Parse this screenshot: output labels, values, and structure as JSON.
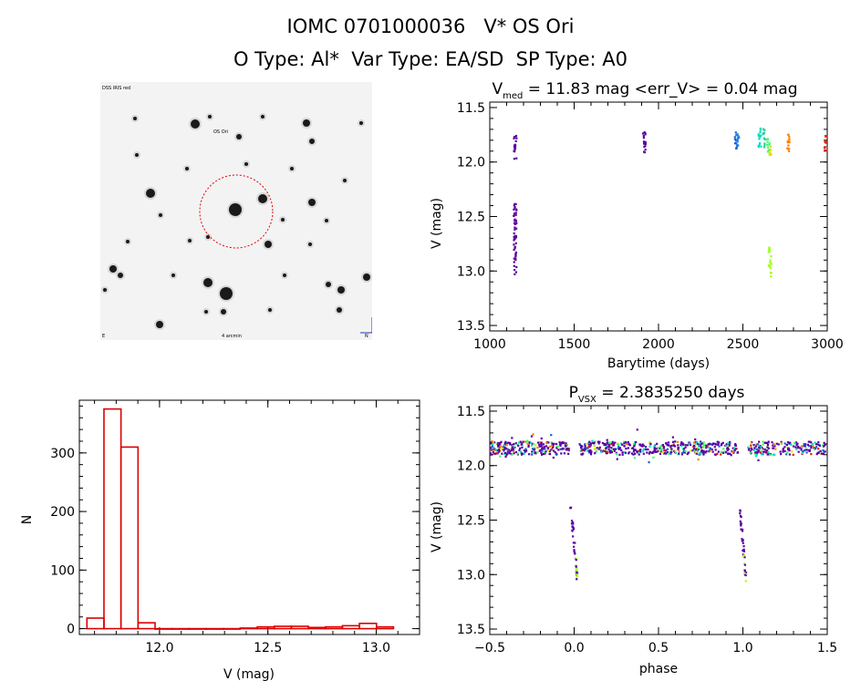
{
  "header": {
    "title_line1": "IOMC 0701000036   V* OS Ori",
    "title_line2": "O Type: Al*  Var Type: EA/SD  SP Type: A0"
  },
  "finder": {
    "label_top_left": "DSS IRIS red",
    "label_target": "OS Ori",
    "label_bottom_center": "4 arcmin",
    "label_bottom_left": "E",
    "label_bottom_right": "N"
  },
  "chart_data": [
    {
      "type": "scatter",
      "id": "light_curve",
      "title_main": "V",
      "title_sub": "med",
      "title_rest": " = 11.83 mag <err_V> = 0.04 mag",
      "xlabel": "Barytime (days)",
      "ylabel": "V (mag)",
      "xlim": [
        1000,
        3000
      ],
      "ylim": [
        13.55,
        11.45
      ],
      "xticks": [
        1000,
        1500,
        2000,
        2500,
        3000
      ],
      "yticks": [
        11.5,
        12.0,
        12.5,
        13.0,
        13.5
      ],
      "ytick_labels": [
        "11.5",
        "12.0",
        "12.5",
        "13.0",
        "13.5"
      ],
      "segments": [
        {
          "x": 1150,
          "y_lo": 11.74,
          "y_hi": 11.98,
          "color": "#5a00a0"
        },
        {
          "x": 1150,
          "y_lo": 12.38,
          "y_hi": 13.06,
          "color": "#5a00a0"
        },
        {
          "x": 1915,
          "y_lo": 11.72,
          "y_hi": 11.93,
          "color": "#5a00a0"
        },
        {
          "x": 2460,
          "y_lo": 11.72,
          "y_hi": 11.88,
          "color": "#1f5fd0"
        },
        {
          "x": 2470,
          "y_lo": 11.74,
          "y_hi": 11.86,
          "color": "#2080e0"
        },
        {
          "x": 2600,
          "y_lo": 11.68,
          "y_hi": 11.88,
          "color": "#00e0c0"
        },
        {
          "x": 2625,
          "y_lo": 11.68,
          "y_hi": 11.87,
          "color": "#30d0a0"
        },
        {
          "x": 2650,
          "y_lo": 11.78,
          "y_hi": 11.92,
          "color": "#40ff60"
        },
        {
          "x": 2665,
          "y_lo": 11.86,
          "y_hi": 11.98,
          "color": "#e0e000"
        },
        {
          "x": 2660,
          "y_lo": 12.78,
          "y_hi": 13.06,
          "color": "#a0ff20"
        },
        {
          "x": 2770,
          "y_lo": 11.73,
          "y_hi": 11.92,
          "color": "#ff8000"
        },
        {
          "x": 2990,
          "y_lo": 11.76,
          "y_hi": 11.9,
          "color": "#e02000"
        }
      ]
    },
    {
      "type": "bar",
      "id": "histogram",
      "xlabel": "V (mag)",
      "ylabel": "N",
      "xlim": [
        11.63,
        13.2
      ],
      "ylim": [
        -10,
        390
      ],
      "xticks": [
        12.0,
        12.5,
        13.0
      ],
      "xtick_labels": [
        "12.0",
        "12.5",
        "13.0"
      ],
      "yticks": [
        0,
        100,
        200,
        300
      ],
      "bin_width": 0.0786,
      "bin_start": 11.665,
      "values": [
        18,
        375,
        310,
        10,
        0,
        0,
        0,
        0,
        0,
        1,
        3,
        4,
        4,
        2,
        3,
        5,
        9,
        3
      ],
      "bar_color": "#dd0000"
    },
    {
      "type": "scatter",
      "id": "phased_curve",
      "title_main": "P",
      "title_sub": "VSX",
      "title_rest": " = 2.3835250 days",
      "xlabel": "phase",
      "ylabel": "V (mag)",
      "xlim": [
        -0.5,
        1.5
      ],
      "ylim": [
        13.55,
        11.45
      ],
      "xticks": [
        -0.5,
        0.0,
        0.5,
        1.0,
        1.5
      ],
      "xtick_labels": [
        "−0.5",
        "0.0",
        "0.5",
        "1.0",
        "1.5"
      ],
      "yticks": [
        11.5,
        12.0,
        12.5,
        13.0,
        13.5
      ],
      "ytick_labels": [
        "11.5",
        "12.0",
        "12.5",
        "13.0",
        "13.5"
      ],
      "eclipse": [
        {
          "phase_lo": -0.02,
          "phase_hi": 0.02,
          "y_lo": 12.38,
          "y_hi": 13.06,
          "color": "#5a00a0"
        },
        {
          "phase_lo": 0.98,
          "phase_hi": 1.02,
          "y_lo": 12.38,
          "y_hi": 13.06,
          "color": "#5a00a0"
        }
      ],
      "palette": [
        "#5a00a0",
        "#1f5fd0",
        "#00e0c0",
        "#40ff60",
        "#e0e000",
        "#ff8000",
        "#e02000"
      ],
      "baseline_mag": 11.84,
      "baseline_spread": 0.06
    }
  ]
}
